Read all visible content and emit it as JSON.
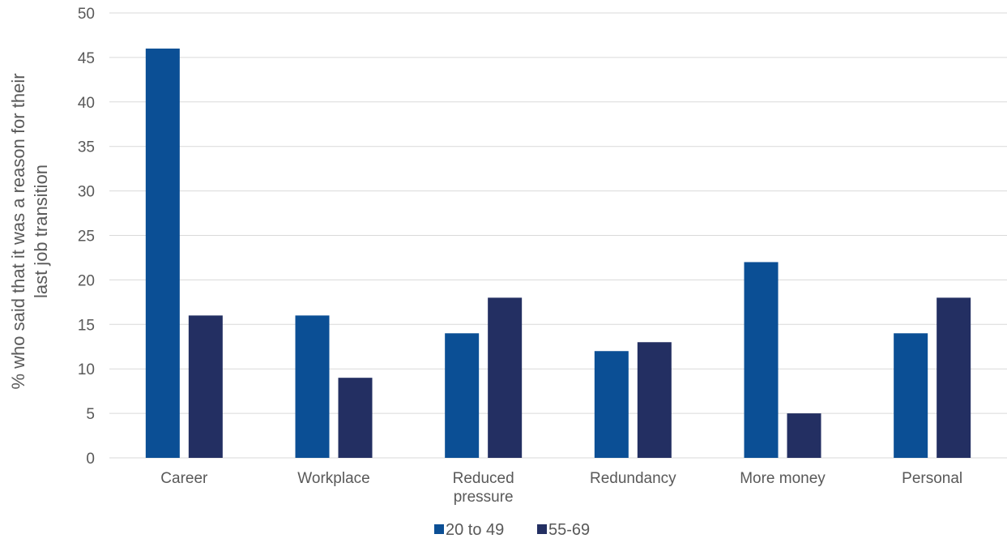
{
  "chart_data": {
    "type": "bar",
    "title": "",
    "ylabel_lines": [
      "% who said that it was a reason for their",
      "last job transition"
    ],
    "xlabel": "",
    "ylim": [
      0,
      50
    ],
    "ytick_step": 5,
    "grid": true,
    "legend_position": "bottom",
    "categories": [
      "Career",
      "Workplace",
      "Reduced pressure",
      "Redundancy",
      "More money",
      "Personal"
    ],
    "category_label_lines": [
      [
        "Career"
      ],
      [
        "Workplace"
      ],
      [
        "Reduced",
        "pressure"
      ],
      [
        "Redundancy"
      ],
      [
        "More money"
      ],
      [
        "Personal"
      ]
    ],
    "series": [
      {
        "name": "20 to 49",
        "color": "#0B4F95",
        "values": [
          46,
          16,
          14,
          12,
          22,
          14
        ]
      },
      {
        "name": "55-69",
        "color": "#232F62",
        "values": [
          16,
          9,
          18,
          13,
          5,
          18
        ]
      }
    ],
    "colors": {
      "grid": "#D9D9D9",
      "text": "#595959"
    }
  }
}
